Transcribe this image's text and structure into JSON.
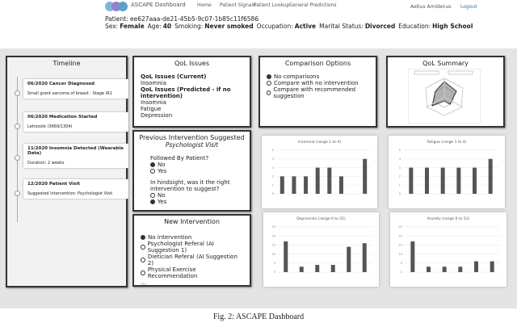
{
  "header": {
    "app_name": "ASCAPE Dashboard",
    "nav": [
      "Home",
      "Patient Signals",
      "Patient Lookup",
      "General Predictions"
    ],
    "user": "Aetius Amidenus",
    "logout": "Logout"
  },
  "patient": {
    "id_line": "Patient: ee627aaa-de21-45b5-9c07-1b85c11f6586",
    "fields": [
      {
        "label": "Sex:",
        "value": "Female"
      },
      {
        "label": "Age:",
        "value": "40"
      },
      {
        "label": "Smoking:",
        "value": "Never smoked"
      },
      {
        "label": "Occupation:",
        "value": "Active"
      },
      {
        "label": "Marital Status:",
        "value": "Divorced"
      },
      {
        "label": "Education:",
        "value": "High School"
      }
    ]
  },
  "timeline": {
    "title": "Timeline",
    "events": [
      {
        "title": "06/2020 Cancer Diagnosed",
        "detail": "Small grant sarcoma of breast - Stage IA1"
      },
      {
        "title": "06/2020 Medication Started",
        "detail": "Letrozole (3669/1304)"
      },
      {
        "title": "11/2020 Insomnia Detected (Wearable Data)",
        "detail": "Duration: 2 weeks"
      },
      {
        "title": "12/2020 Patient Visit",
        "detail": "Suggested Intervention: Psychologist Visit"
      }
    ]
  },
  "qol_issues": {
    "title": "QoL Issues",
    "current_heading": "QoL Issues (Current)",
    "current": [
      "Insomnia"
    ],
    "predicted_heading": "QoL Issues (Predicted - if no intervention)",
    "predicted": [
      "Insomnia",
      "Fatigue",
      "Depression"
    ]
  },
  "previous_intervention": {
    "title": "Previous Intervention Suggested",
    "suggestion": "Psychologist Visit",
    "q1": "Followed By Patient?",
    "q1_options": [
      {
        "label": "No",
        "checked": true
      },
      {
        "label": "Yes",
        "checked": false
      }
    ],
    "q2": "In hindsight, was it the right intervention to suggest?",
    "q2_options": [
      {
        "label": "No",
        "checked": false
      },
      {
        "label": "Yes",
        "checked": true
      }
    ]
  },
  "new_intervention": {
    "title": "New Intervention",
    "options": [
      {
        "label": "No intervention",
        "checked": true
      },
      {
        "label": "Psychologist Referal (AI Suggestion 1)",
        "checked": false
      },
      {
        "label": "Dietician Referal (AI Suggestion 2)",
        "checked": false
      },
      {
        "label": "Physical Exercise Recommendation",
        "checked": false
      }
    ],
    "more": "..."
  },
  "comparison": {
    "title": "Comparison Options",
    "options": [
      {
        "label": "No comparisons",
        "checked": true
      },
      {
        "label": "Compare with no intervention",
        "checked": false
      },
      {
        "label": "Compare with recommended suggestion",
        "checked": false
      }
    ]
  },
  "qol_summary": {
    "title": "QoL Summary"
  },
  "charts": [
    {
      "type": "bar",
      "title": "Insomnia (range 1 to 4)",
      "values": [
        2,
        2,
        2,
        3,
        3,
        2,
        0,
        4
      ],
      "color": "#555555",
      "ylim": [
        0,
        5
      ],
      "yticks": [
        0,
        1,
        2,
        3,
        4,
        5
      ]
    },
    {
      "type": "bar",
      "title": "Fatigue (range 1 to 4)",
      "values": [
        3,
        3,
        3,
        3,
        3,
        4
      ],
      "color": "#555555",
      "ylim": [
        0,
        5
      ],
      "yticks": [
        0,
        1,
        2,
        3,
        4,
        5
      ]
    },
    {
      "type": "bar",
      "title": "Depression (range 0 to 21)",
      "values": [
        17,
        3,
        4,
        4,
        14,
        16
      ],
      "color": "#555555",
      "ylim": [
        0,
        25
      ],
      "yticks": [
        0,
        5,
        10,
        15,
        20,
        25
      ]
    },
    {
      "type": "bar",
      "title": "Anxiety (range 0 to 21)",
      "values": [
        17,
        3,
        3,
        3,
        6,
        6
      ],
      "color": "#555555",
      "ylim": [
        0,
        25
      ],
      "yticks": [
        0,
        5,
        10,
        15,
        20,
        25
      ]
    }
  ],
  "caption": "Fig. 2: ASCAPE Dashboard"
}
